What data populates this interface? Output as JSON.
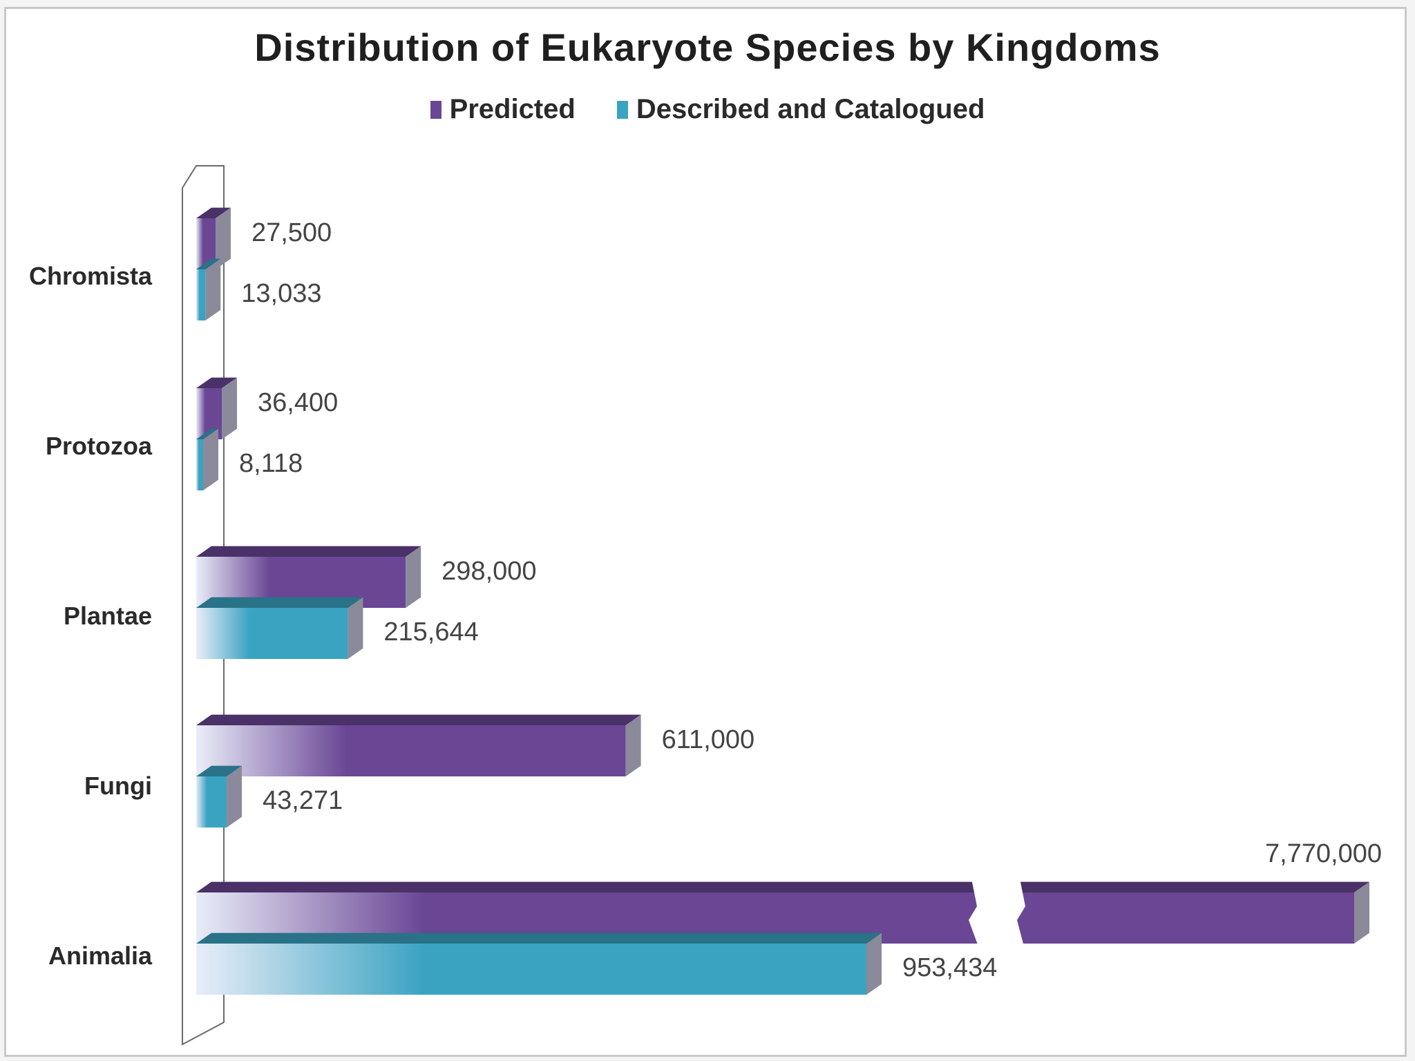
{
  "chart_data": {
    "type": "bar",
    "orientation": "horizontal",
    "title": "Distribution of Eukaryote Species by Kingdoms",
    "categories": [
      "Chromista",
      "Protozoa",
      "Plantae",
      "Fungi",
      "Animalia"
    ],
    "series": [
      {
        "name": "Predicted",
        "color": "#6a4695",
        "values": [
          27500,
          36400,
          298000,
          611000,
          7770000
        ],
        "labels": [
          "27,500",
          "36,400",
          "298,000",
          "611,000",
          "7,770,000"
        ]
      },
      {
        "name": "Described and Catalogued",
        "color": "#3aa3c2",
        "values": [
          13033,
          8118,
          215644,
          43271,
          953434
        ],
        "labels": [
          "13,033",
          "8,118",
          "215,644",
          "43,271",
          "953,434"
        ]
      }
    ],
    "axis_break": true,
    "legend_position": "top",
    "grid": false
  }
}
